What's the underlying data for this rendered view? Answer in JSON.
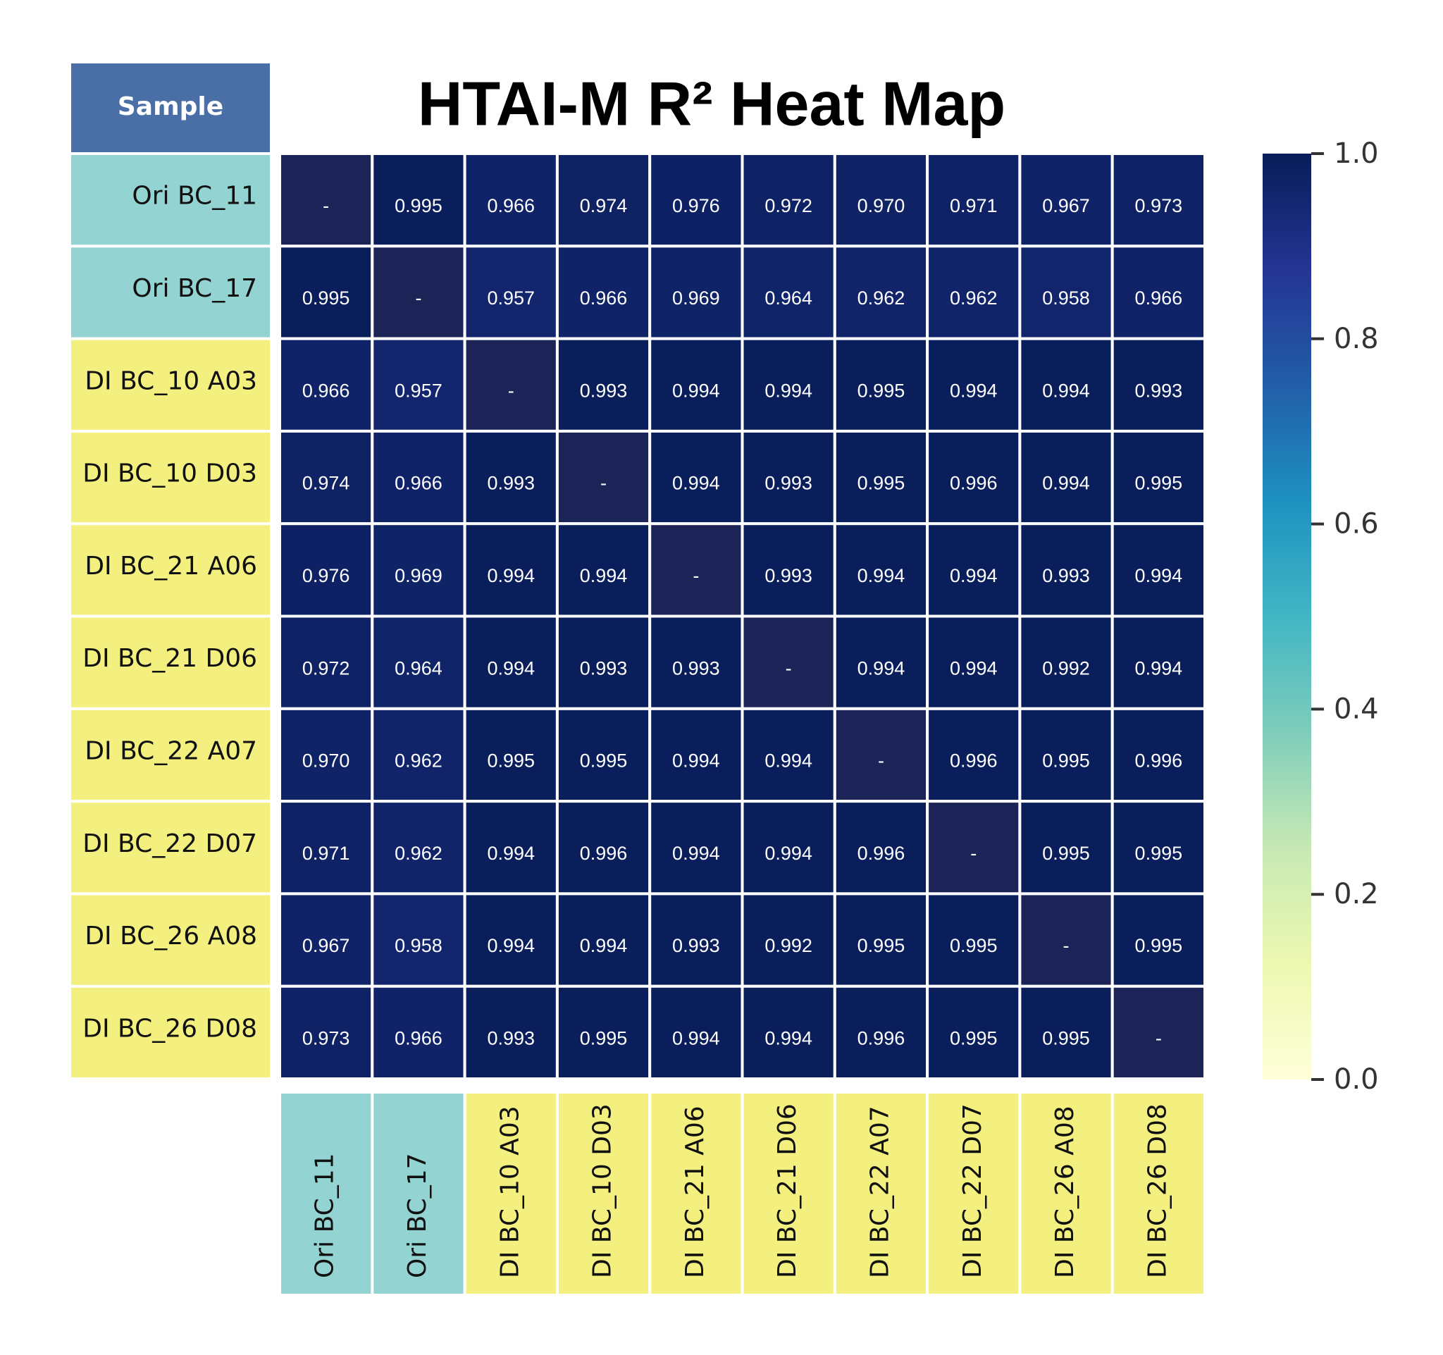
{
  "chart_data": {
    "type": "heatmap",
    "title": "HTAI-M R² Heat Map",
    "corner_label": "Sample",
    "rows": [
      "Ori BC_11",
      "Ori BC_17",
      "DI BC_10 A03",
      "DI BC_10 D03",
      "DI BC_21 A06",
      "DI BC_21 D06",
      "DI BC_22 A07",
      "DI BC_22 D07",
      "DI BC_26 A08",
      "DI BC_26 D08"
    ],
    "columns": [
      "Ori BC_11",
      "Ori BC_17",
      "DI BC_10 A03",
      "DI BC_10 D03",
      "DI BC_21 A06",
      "DI BC_21 D06",
      "DI BC_22 A07",
      "DI BC_22 D07",
      "DI BC_26 A08",
      "DI BC_26 D08"
    ],
    "groups": [
      "Ori",
      "Ori",
      "DI",
      "DI",
      "DI",
      "DI",
      "DI",
      "DI",
      "DI",
      "DI"
    ],
    "group_colors": {
      "Ori": "#93d3d1",
      "DI": "#f3f080",
      "header": "#4a6ea6"
    },
    "diagonal_label": "-",
    "values": [
      [
        null,
        "0.995",
        "0.966",
        "0.974",
        "0.976",
        "0.972",
        "0.970",
        "0.971",
        "0.967",
        "0.973"
      ],
      [
        "0.995",
        null,
        "0.957",
        "0.966",
        "0.969",
        "0.964",
        "0.962",
        "0.962",
        "0.958",
        "0.966"
      ],
      [
        "0.966",
        "0.957",
        null,
        "0.993",
        "0.994",
        "0.994",
        "0.995",
        "0.994",
        "0.994",
        "0.993"
      ],
      [
        "0.974",
        "0.966",
        "0.993",
        null,
        "0.994",
        "0.993",
        "0.995",
        "0.996",
        "0.994",
        "0.995"
      ],
      [
        "0.976",
        "0.969",
        "0.994",
        "0.994",
        null,
        "0.993",
        "0.994",
        "0.994",
        "0.993",
        "0.994"
      ],
      [
        "0.972",
        "0.964",
        "0.994",
        "0.993",
        "0.993",
        null,
        "0.994",
        "0.994",
        "0.992",
        "0.994"
      ],
      [
        "0.970",
        "0.962",
        "0.995",
        "0.995",
        "0.994",
        "0.994",
        null,
        "0.996",
        "0.995",
        "0.996"
      ],
      [
        "0.971",
        "0.962",
        "0.994",
        "0.996",
        "0.994",
        "0.994",
        "0.996",
        null,
        "0.995",
        "0.995"
      ],
      [
        "0.967",
        "0.958",
        "0.994",
        "0.994",
        "0.993",
        "0.992",
        "0.995",
        "0.995",
        null,
        "0.995"
      ],
      [
        "0.973",
        "0.966",
        "0.993",
        "0.995",
        "0.994",
        "0.994",
        "0.996",
        "0.995",
        "0.995",
        null
      ]
    ],
    "colorscale": "YlGnBu",
    "colorbar_range": [
      0.0,
      1.0
    ],
    "colorbar_ticks": [
      "0.0",
      "0.2",
      "0.4",
      "0.6",
      "0.8",
      "1.0"
    ],
    "grid": true,
    "legend": "colorbar right"
  }
}
